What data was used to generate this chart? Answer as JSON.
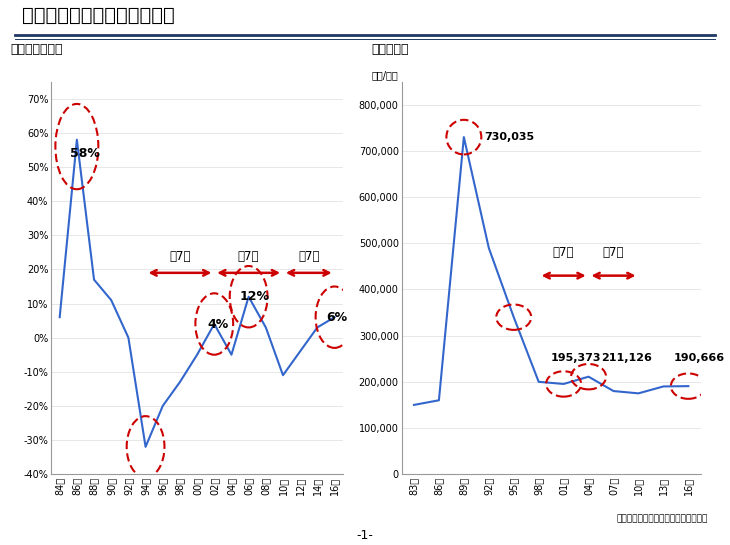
{
  "title": "公示価格のサイクル（全国）",
  "left_label": "【前年増減率】",
  "right_label": "【㎡単位】",
  "right_unit": "（円/㎡）",
  "source": "（国土交通省「地価公示」より作成）",
  "page": "-1-",
  "left_years": [
    "84年",
    "86年",
    "88年",
    "90年",
    "92年",
    "94年",
    "96年",
    "98年",
    "00年",
    "02年",
    "04年",
    "06年",
    "08年",
    "10年",
    "12年",
    "14年",
    "16年"
  ],
  "left_values": [
    6,
    58,
    17,
    11,
    0,
    -32,
    -20,
    -13,
    -5,
    4,
    -5,
    12,
    3,
    -11,
    -4,
    3,
    6
  ],
  "right_years": [
    "83年",
    "86年",
    "89年",
    "92年",
    "95年",
    "98年",
    "01年",
    "04年",
    "07年",
    "10年",
    "13年",
    "16年"
  ],
  "right_values": [
    150000,
    160000,
    730035,
    490000,
    340000,
    200000,
    195373,
    211126,
    180000,
    175000,
    190000,
    190666
  ],
  "line_color": "#3366CC",
  "circle_color": "#CC0000",
  "bg_color": "#FFFFFF",
  "title_bar_color": "#1F3864",
  "grid_color": "#DDDDDD",
  "spine_color": "#999999"
}
